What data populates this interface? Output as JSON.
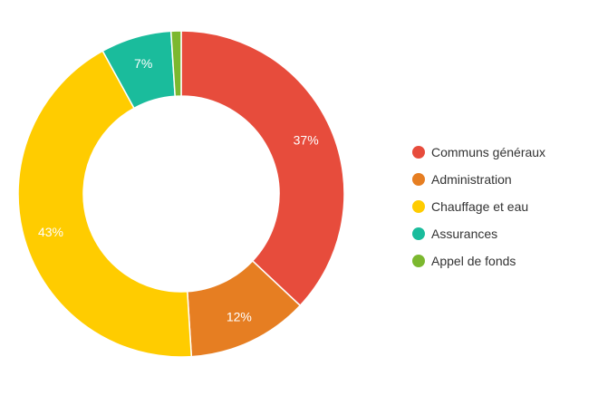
{
  "chart_data": {
    "type": "pie",
    "donut": true,
    "legend_position": "right",
    "slices": [
      {
        "name": "Communs généraux",
        "value": 37,
        "label": "37%",
        "color": "#e74c3c"
      },
      {
        "name": "Administration",
        "value": 12,
        "label": "12%",
        "color": "#e67e22"
      },
      {
        "name": "Chauffage et eau",
        "value": 43,
        "label": "43%",
        "color": "#ffcc00"
      },
      {
        "name": "Assurances",
        "value": 7,
        "label": "7%",
        "color": "#1abc9c"
      },
      {
        "name": "Appel de fonds",
        "value": 1,
        "label": "",
        "color": "#7cb82f"
      }
    ]
  }
}
